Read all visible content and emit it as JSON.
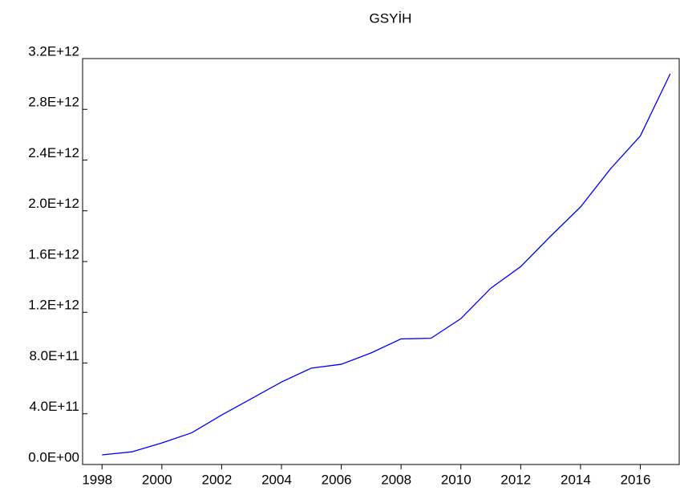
{
  "chart_data": {
    "type": "line",
    "title": "GSYİH",
    "x": [
      1998,
      1999,
      2000,
      2001,
      2002,
      2003,
      2004,
      2005,
      2006,
      2007,
      2008,
      2009,
      2010,
      2011,
      2012,
      2013,
      2014,
      2015,
      2016,
      2017
    ],
    "series": [
      {
        "name": "GSYİH",
        "color": "#0000ff",
        "values": [
          76000000000,
          100000000000,
          170000000000,
          250000000000,
          390000000000,
          520000000000,
          650000000000,
          760000000000,
          790000000000,
          880000000000,
          990000000000,
          995000000000,
          1150000000000,
          1390000000000,
          1560000000000,
          1800000000000,
          2030000000000,
          2330000000000,
          2590000000000,
          3080000000000
        ]
      }
    ],
    "xlim": [
      1997.35,
      2017.3
    ],
    "xticks": [
      1998,
      2000,
      2002,
      2004,
      2006,
      2008,
      2010,
      2012,
      2014,
      2016
    ],
    "ylim": [
      0,
      3200000000000
    ],
    "yticks": [
      {
        "value": 0,
        "label": "0.0E+00"
      },
      {
        "value": 400000000000,
        "label": "4.0E+11"
      },
      {
        "value": 800000000000,
        "label": "8.0E+11"
      },
      {
        "value": 1200000000000,
        "label": "1.2E+12"
      },
      {
        "value": 1600000000000,
        "label": "1.6E+12"
      },
      {
        "value": 2000000000000,
        "label": "2.0E+12"
      },
      {
        "value": 2400000000000,
        "label": "2.4E+12"
      },
      {
        "value": 2800000000000,
        "label": "2.8E+12"
      },
      {
        "value": 3200000000000,
        "label": "3.2E+12"
      }
    ]
  }
}
